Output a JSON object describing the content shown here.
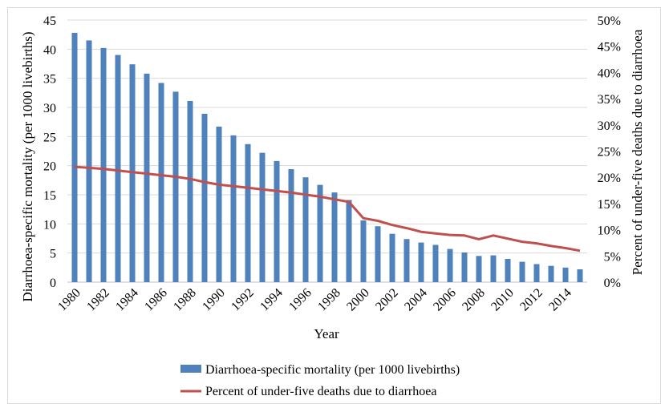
{
  "chart_data": {
    "type": "bar+line",
    "xlabel": "Year",
    "ylabel_left": "Diarrhoea-specific mortality (per 1000 livebirths)",
    "ylabel_right": "Percent of under-five deaths due to diarrhoea",
    "ylim_left": [
      0,
      45
    ],
    "ylim_right": [
      0,
      50
    ],
    "yticks_left": [
      "0",
      "5",
      "10",
      "15",
      "20",
      "25",
      "30",
      "35",
      "40",
      "45"
    ],
    "yticks_right": [
      "0%",
      "5%",
      "10%",
      "15%",
      "20%",
      "25%",
      "30%",
      "35%",
      "40%",
      "45%",
      "50%"
    ],
    "x": [
      1980,
      1981,
      1982,
      1983,
      1984,
      1985,
      1986,
      1987,
      1988,
      1989,
      1990,
      1991,
      1992,
      1993,
      1994,
      1995,
      1996,
      1997,
      1998,
      1999,
      2000,
      2001,
      2002,
      2003,
      2004,
      2005,
      2006,
      2007,
      2008,
      2009,
      2010,
      2011,
      2012,
      2013,
      2014,
      2015
    ],
    "xtick_labels": [
      "1980",
      "1982",
      "1984",
      "1986",
      "1988",
      "1990",
      "1992",
      "1994",
      "1996",
      "1998",
      "2000",
      "2002",
      "2004",
      "2006",
      "2008",
      "2010",
      "2012",
      "2014"
    ],
    "grid": true,
    "legend_position": "bottom",
    "series": [
      {
        "name": "Diarrhoea-specific mortality (per 1000 livebirths)",
        "type": "bar",
        "axis": "left",
        "color": "#4f81bd",
        "values": [
          42.8,
          41.5,
          40.2,
          39.0,
          37.4,
          35.8,
          34.2,
          32.7,
          31.1,
          28.9,
          26.7,
          25.2,
          23.7,
          22.2,
          20.8,
          19.4,
          18.0,
          16.7,
          15.4,
          14.1,
          10.6,
          9.6,
          8.3,
          7.4,
          6.8,
          6.4,
          5.7,
          5.1,
          4.5,
          4.6,
          4.0,
          3.5,
          3.1,
          2.8,
          2.5,
          2.2
        ]
      },
      {
        "name": "Percent of under-five deaths due to diarrhoea",
        "type": "line",
        "axis": "right",
        "color": "#c0504d",
        "values": [
          22.0,
          21.8,
          21.6,
          21.3,
          21.0,
          20.7,
          20.4,
          20.1,
          19.7,
          19.1,
          18.6,
          18.3,
          18.0,
          17.7,
          17.4,
          17.1,
          16.7,
          16.3,
          15.8,
          15.3,
          12.2,
          11.7,
          10.9,
          10.3,
          9.6,
          9.3,
          9.0,
          8.9,
          8.2,
          8.9,
          8.3,
          7.7,
          7.4,
          6.9,
          6.5,
          6.0
        ]
      }
    ]
  }
}
